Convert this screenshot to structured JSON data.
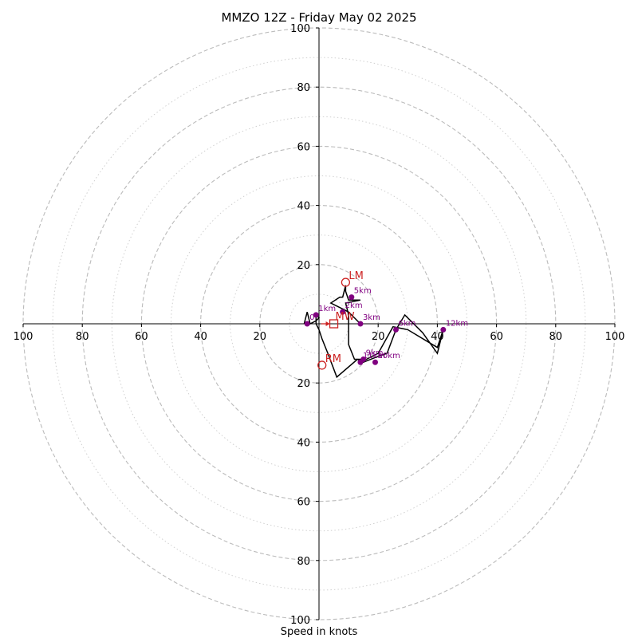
{
  "chart_data": {
    "type": "hodograph",
    "title": "MMZO 12Z - Friday May 02 2025",
    "xlabel": "Speed in knots",
    "range": [
      -100,
      100
    ],
    "ring_major": [
      20,
      40,
      60,
      80,
      100
    ],
    "ring_minor": [
      10,
      30,
      50,
      70,
      90
    ],
    "tick_labels": {
      "left": [
        "100",
        "80",
        "60",
        "40",
        "20"
      ],
      "right": [
        "20",
        "40",
        "60",
        "80",
        "100"
      ],
      "up": [
        "20",
        "40",
        "60",
        "80",
        "100"
      ],
      "down": [
        "20",
        "40",
        "60",
        "80",
        "100"
      ]
    },
    "tick_values": {
      "left": [
        -100,
        -80,
        -60,
        -40,
        -20
      ],
      "right": [
        20,
        40,
        60,
        80,
        100
      ],
      "up": [
        20,
        40,
        60,
        80,
        100
      ],
      "down": [
        -20,
        -40,
        -60,
        -80,
        -100
      ]
    },
    "trace": [
      [
        -5,
        0
      ],
      [
        -4,
        4
      ],
      [
        -3,
        0
      ],
      [
        -1,
        1
      ],
      [
        0,
        2
      ],
      [
        -1,
        3
      ],
      [
        -1,
        0
      ],
      [
        0,
        -2
      ],
      [
        1,
        -5
      ],
      [
        3,
        -10
      ],
      [
        6,
        -18
      ],
      [
        13,
        -12
      ],
      [
        15,
        -13
      ],
      [
        20,
        -11
      ],
      [
        23,
        -10
      ],
      [
        26,
        -2
      ],
      [
        29,
        3
      ],
      [
        35,
        -3
      ],
      [
        40,
        -10
      ],
      [
        42,
        -2
      ],
      [
        40,
        -8
      ],
      [
        30,
        -2
      ],
      [
        25,
        -1
      ],
      [
        20,
        -10
      ],
      [
        16,
        -12
      ],
      [
        14,
        -12
      ],
      [
        12,
        -12
      ],
      [
        10,
        -7
      ],
      [
        10,
        0
      ],
      [
        10,
        3
      ],
      [
        9,
        7
      ],
      [
        14,
        8
      ],
      [
        12,
        8
      ],
      [
        10,
        8
      ],
      [
        9,
        11
      ],
      [
        9,
        13
      ],
      [
        8,
        9
      ],
      [
        7,
        9
      ],
      [
        4,
        7
      ],
      [
        8,
        5
      ],
      [
        10,
        4
      ],
      [
        12,
        2
      ],
      [
        14,
        0
      ]
    ],
    "km_points": [
      {
        "label": "0",
        "u": -4,
        "v": 0
      },
      {
        "label": "1km",
        "u": -1,
        "v": 3
      },
      {
        "label": "2km",
        "u": 8,
        "v": 4
      },
      {
        "label": "3km",
        "u": 14,
        "v": 0
      },
      {
        "label": "5km",
        "u": 11,
        "v": 9
      },
      {
        "label": "6km",
        "u": 26,
        "v": -2
      },
      {
        "label": "9km",
        "u": 15,
        "v": -12
      },
      {
        "label": "10km",
        "u": 19,
        "v": -13
      },
      {
        "label": "11km",
        "u": 14,
        "v": -13
      },
      {
        "label": "12km",
        "u": 42,
        "v": -2
      }
    ],
    "markers": {
      "lm": {
        "label": "LM",
        "u": 9,
        "v": 14
      },
      "rm": {
        "label": "RM",
        "u": 1,
        "v": -14
      },
      "mw": {
        "label": "MW",
        "u": 5,
        "v": 0
      }
    },
    "colors": {
      "trace": "#000000",
      "km_points": "#800080",
      "markers": "#cc2222",
      "rings": "#bbbbbb"
    }
  }
}
